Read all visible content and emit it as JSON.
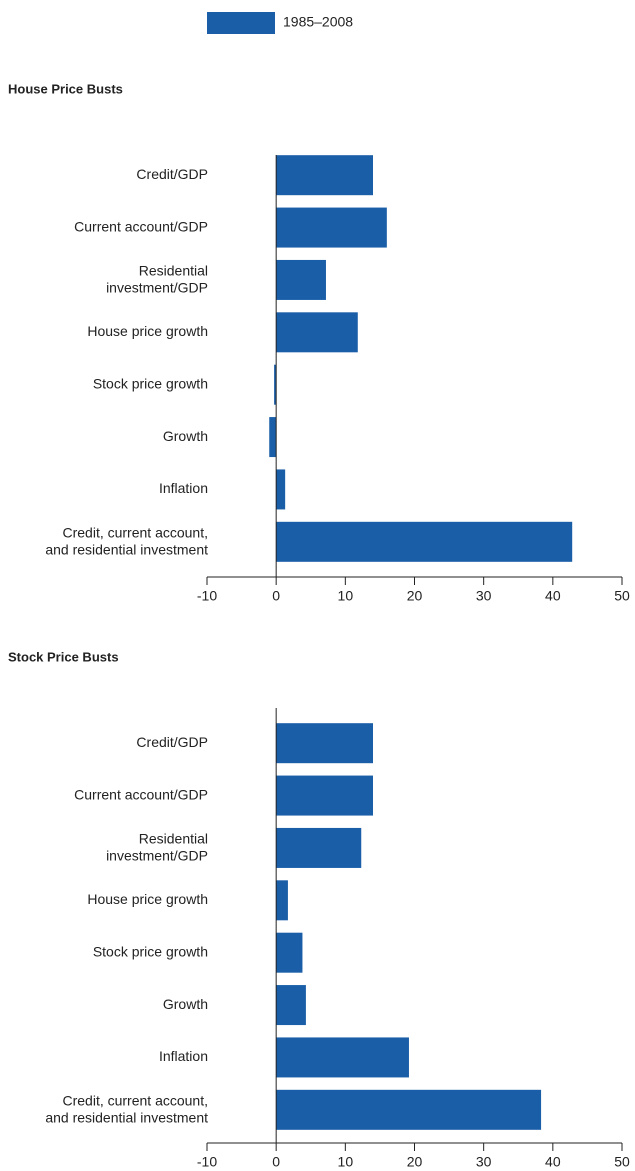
{
  "chart_data": [
    {
      "type": "barh",
      "title": "House Price Busts",
      "categories": [
        "Credit/GDP",
        "Current account/GDP",
        "Residential\ninvestment/GDP",
        "House price growth",
        "Stock price growth",
        "Growth",
        "Inflation",
        "Credit, current account,\nand residential investment"
      ],
      "series": [
        {
          "name": "1985–2008",
          "color": "#1b5ea8",
          "values": [
            14.0,
            16.0,
            7.2,
            11.8,
            -0.3,
            -1.0,
            1.3,
            42.8
          ]
        }
      ],
      "xlim": [
        -10,
        50
      ],
      "xticks": [
        -10,
        0,
        10,
        20,
        30,
        40,
        50
      ]
    },
    {
      "type": "barh",
      "title": "Stock Price Busts",
      "categories": [
        "Credit/GDP",
        "Current account/GDP",
        "Residential\ninvestment/GDP",
        "House price growth",
        "Stock price growth",
        "Growth",
        "Inflation",
        "Credit, current account,\nand residential investment"
      ],
      "values": [
        14.0,
        14.0,
        12.3,
        1.7,
        3.8,
        4.3,
        19.2,
        38.3
      ],
      "color": "#1b5ea8",
      "xlim": [
        -10,
        50
      ],
      "xticks": [
        -10,
        0,
        10,
        20,
        30,
        40,
        50
      ]
    }
  ]
}
